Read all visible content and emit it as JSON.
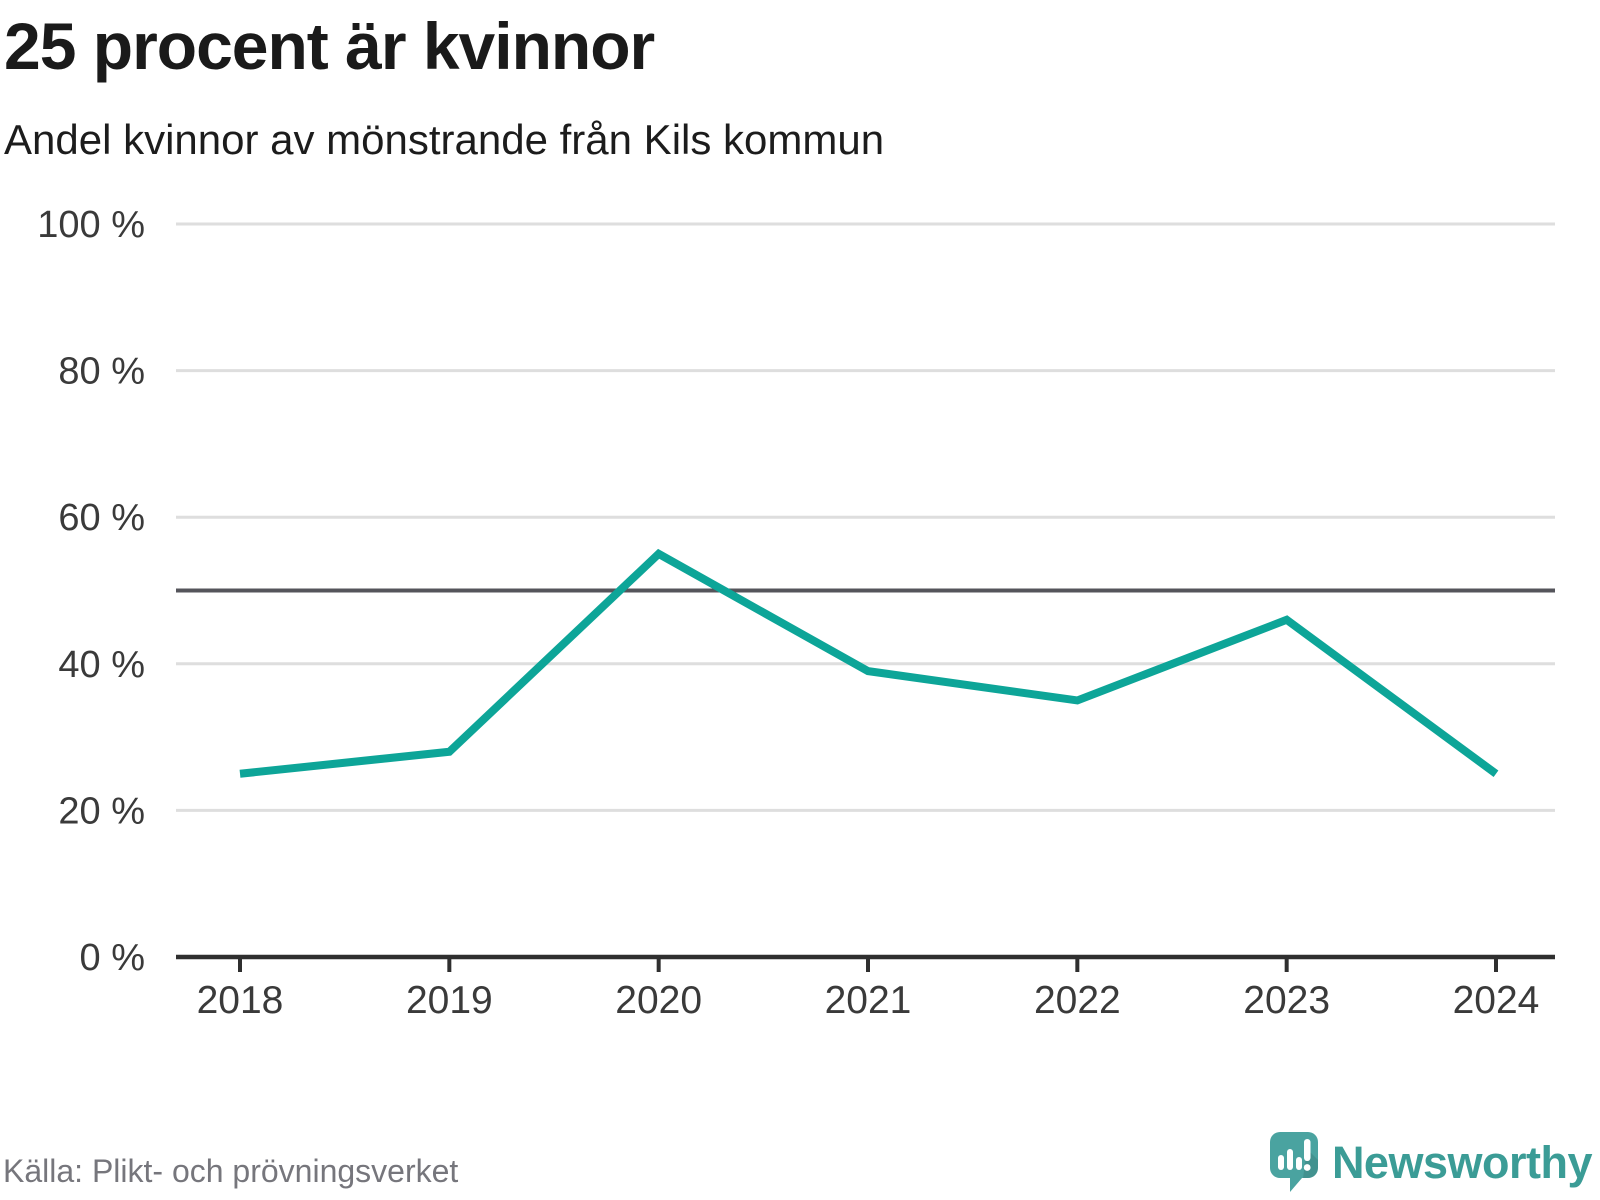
{
  "header": {
    "title": "25 procent är kvinnor",
    "subtitle": "Andel kvinnor av mönstrande från Kils kommun"
  },
  "chart_data": {
    "type": "line",
    "title": "25 procent är kvinnor",
    "subtitle": "Andel kvinnor av mönstrande från Kils kommun",
    "x": [
      2018,
      2019,
      2020,
      2021,
      2022,
      2023,
      2024
    ],
    "series": [
      {
        "name": "Andel kvinnor av mönstrande",
        "values": [
          25,
          28,
          55,
          39,
          35,
          46,
          25
        ]
      }
    ],
    "unit": "%",
    "ylim": [
      0,
      100
    ],
    "yticks": [
      0,
      20,
      40,
      60,
      80,
      100
    ],
    "ytick_labels": [
      "0 %",
      "20 %",
      "40 %",
      "60 %",
      "80 %",
      "100 %"
    ],
    "xtick_labels": [
      "2018",
      "2019",
      "2020",
      "2021",
      "2022",
      "2023",
      "2024"
    ],
    "reference_line": 50,
    "grid": true,
    "legend": false,
    "colors": {
      "line": "#0da598",
      "grid": "#dedede",
      "reference": "#55555b",
      "axis": "#2f2f2f",
      "tick_text": "#3a3a3a"
    }
  },
  "footer": {
    "source": "Källa: Plikt- och prövningsverket",
    "logo_text": "Newsworthy",
    "logo_colors": {
      "bubble": "#4aa3a0",
      "bubble_shade": "#3e8f8f",
      "marks": "#ffffff",
      "text": "#3b9c96"
    }
  }
}
